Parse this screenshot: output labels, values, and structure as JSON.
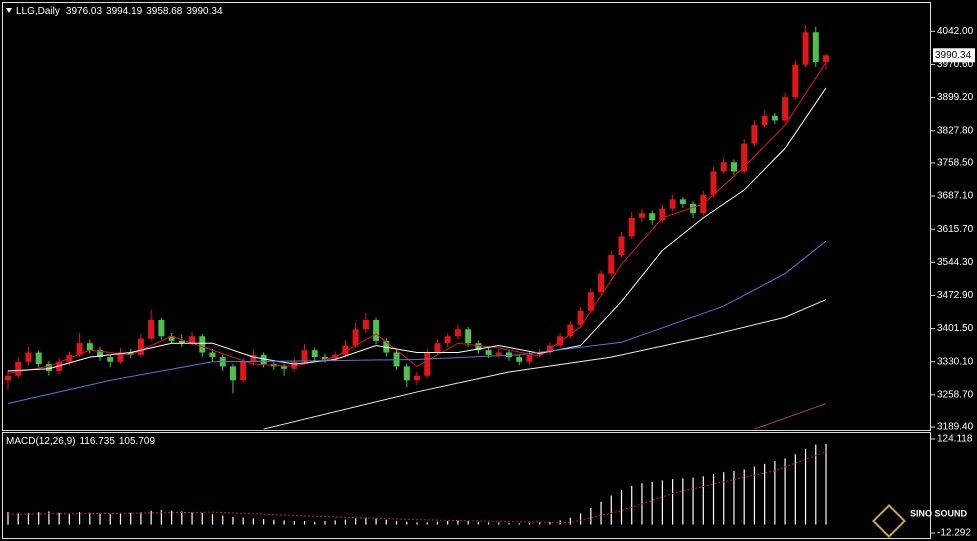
{
  "chart_data": [
    {
      "type": "candlestick",
      "title": "LLG,Daily",
      "up_color": "#e0161b",
      "down_color": "#4ec04b",
      "ylim": [
        3183,
        4103
      ],
      "yticks": [
        {
          "value": 4042,
          "label": "4042.00"
        },
        {
          "value": 3970.6,
          "label": "3970.60"
        },
        {
          "value": 3899.2,
          "label": "3899.20"
        },
        {
          "value": 3827.8,
          "label": "3827.80"
        },
        {
          "value": 3758.5,
          "label": "3758.50"
        },
        {
          "value": 3687.1,
          "label": "3687.10"
        },
        {
          "value": 3615.7,
          "label": "3615.70"
        },
        {
          "value": 3544.3,
          "label": "3544.30"
        },
        {
          "value": 3472.9,
          "label": "3472.90"
        },
        {
          "value": 3401.5,
          "label": "3401.50"
        },
        {
          "value": 3330.1,
          "label": "3330.10"
        },
        {
          "value": 3258.7,
          "label": "3258.70"
        },
        {
          "value": 3189.4,
          "label": "3189.40"
        }
      ],
      "ohlc": [
        [
          3290,
          3312,
          3270,
          3300
        ],
        [
          3300,
          3340,
          3295,
          3330
        ],
        [
          3330,
          3362,
          3322,
          3350
        ],
        [
          3350,
          3355,
          3318,
          3325
        ],
        [
          3325,
          3332,
          3300,
          3310
        ],
        [
          3310,
          3338,
          3304,
          3330
        ],
        [
          3330,
          3352,
          3322,
          3345
        ],
        [
          3345,
          3392,
          3340,
          3370
        ],
        [
          3370,
          3378,
          3348,
          3355
        ],
        [
          3355,
          3362,
          3332,
          3340
        ],
        [
          3340,
          3345,
          3318,
          3330
        ],
        [
          3330,
          3360,
          3325,
          3350
        ],
        [
          3350,
          3358,
          3338,
          3345
        ],
        [
          3345,
          3390,
          3340,
          3380
        ],
        [
          3380,
          3442,
          3375,
          3420
        ],
        [
          3420,
          3425,
          3378,
          3385
        ],
        [
          3385,
          3392,
          3368,
          3375
        ],
        [
          3375,
          3388,
          3362,
          3370
        ],
        [
          3370,
          3395,
          3365,
          3385
        ],
        [
          3385,
          3390,
          3340,
          3350
        ],
        [
          3350,
          3358,
          3330,
          3340
        ],
        [
          3340,
          3346,
          3310,
          3320
        ],
        [
          3320,
          3325,
          3262,
          3290
        ],
        [
          3290,
          3338,
          3285,
          3330
        ],
        [
          3330,
          3355,
          3322,
          3345
        ],
        [
          3345,
          3350,
          3318,
          3325
        ],
        [
          3325,
          3332,
          3312,
          3320
        ],
        [
          3320,
          3326,
          3300,
          3315
        ],
        [
          3315,
          3338,
          3310,
          3330
        ],
        [
          3330,
          3368,
          3325,
          3355
        ],
        [
          3355,
          3360,
          3332,
          3340
        ],
        [
          3340,
          3348,
          3328,
          3335
        ],
        [
          3335,
          3352,
          3330,
          3345
        ],
        [
          3345,
          3378,
          3340,
          3365
        ],
        [
          3365,
          3415,
          3360,
          3400
        ],
        [
          3400,
          3435,
          3392,
          3420
        ],
        [
          3420,
          3425,
          3368,
          3375
        ],
        [
          3375,
          3382,
          3342,
          3350
        ],
        [
          3350,
          3356,
          3312,
          3320
        ],
        [
          3320,
          3326,
          3275,
          3290
        ],
        [
          3290,
          3308,
          3280,
          3300
        ],
        [
          3300,
          3358,
          3295,
          3350
        ],
        [
          3350,
          3378,
          3345,
          3370
        ],
        [
          3370,
          3392,
          3362,
          3385
        ],
        [
          3385,
          3410,
          3378,
          3400
        ],
        [
          3400,
          3405,
          3362,
          3370
        ],
        [
          3370,
          3376,
          3348,
          3355
        ],
        [
          3355,
          3360,
          3338,
          3345
        ],
        [
          3345,
          3358,
          3340,
          3350
        ],
        [
          3350,
          3356,
          3332,
          3340
        ],
        [
          3340,
          3345,
          3322,
          3330
        ],
        [
          3330,
          3352,
          3325,
          3345
        ],
        [
          3345,
          3358,
          3340,
          3350
        ],
        [
          3350,
          3372,
          3345,
          3365
        ],
        [
          3365,
          3392,
          3360,
          3385
        ],
        [
          3385,
          3418,
          3380,
          3410
        ],
        [
          3410,
          3448,
          3405,
          3440
        ],
        [
          3440,
          3488,
          3435,
          3480
        ],
        [
          3480,
          3528,
          3475,
          3520
        ],
        [
          3520,
          3568,
          3515,
          3560
        ],
        [
          3560,
          3610,
          3555,
          3600
        ],
        [
          3600,
          3652,
          3595,
          3640
        ],
        [
          3640,
          3660,
          3630,
          3650
        ],
        [
          3650,
          3656,
          3625,
          3635
        ],
        [
          3635,
          3668,
          3630,
          3660
        ],
        [
          3660,
          3690,
          3655,
          3680
        ],
        [
          3680,
          3685,
          3662,
          3670
        ],
        [
          3670,
          3676,
          3640,
          3650
        ],
        [
          3650,
          3698,
          3645,
          3690
        ],
        [
          3690,
          3750,
          3685,
          3740
        ],
        [
          3740,
          3770,
          3735,
          3760
        ],
        [
          3760,
          3766,
          3732,
          3740
        ],
        [
          3740,
          3810,
          3735,
          3800
        ],
        [
          3800,
          3850,
          3795,
          3840
        ],
        [
          3840,
          3872,
          3835,
          3860
        ],
        [
          3860,
          3866,
          3842,
          3850
        ],
        [
          3850,
          3910,
          3845,
          3900
        ],
        [
          3900,
          3980,
          3895,
          3970
        ],
        [
          3970,
          4055,
          3965,
          4040
        ],
        [
          4040,
          4052,
          3965,
          3976
        ],
        [
          3976.03,
          3994.19,
          3958.68,
          3990.34
        ]
      ],
      "series": [
        {
          "color": "#e0161b",
          "x": [
            0,
            4,
            8,
            12,
            16,
            20,
            24,
            28,
            32,
            36,
            40,
            44,
            48,
            52,
            56,
            60,
            64,
            68,
            72,
            76,
            80
          ],
          "values": [
            3305,
            3320,
            3355,
            3345,
            3385,
            3355,
            3325,
            3320,
            3340,
            3390,
            3320,
            3370,
            3360,
            3342,
            3405,
            3540,
            3640,
            3670,
            3750,
            3840,
            3975
          ]
        },
        {
          "color": "#ffffff",
          "x": [
            0,
            4,
            8,
            12,
            16,
            20,
            24,
            28,
            32,
            36,
            40,
            44,
            48,
            52,
            56,
            60,
            64,
            68,
            72,
            76,
            80
          ],
          "values": [
            3310,
            3315,
            3340,
            3350,
            3370,
            3370,
            3340,
            3325,
            3335,
            3365,
            3350,
            3350,
            3365,
            3348,
            3365,
            3460,
            3570,
            3640,
            3700,
            3790,
            3920
          ]
        },
        {
          "color": "#4a7fd6",
          "x": [
            0,
            10,
            20,
            30,
            40,
            50,
            60,
            70,
            76,
            80
          ],
          "values": [
            3240,
            3290,
            3330,
            3332,
            3335,
            3345,
            3372,
            3450,
            3520,
            3590
          ]
        },
        {
          "color": "#f2f0d8",
          "x": [
            25,
            40,
            49,
            59,
            68,
            76,
            80
          ],
          "values": [
            3185,
            3265,
            3308,
            3340,
            3383,
            3426,
            3464
          ]
        },
        {
          "color": "#b5472f",
          "x": [
            73,
            80
          ],
          "values": [
            3185,
            3240
          ]
        }
      ]
    },
    {
      "type": "macd",
      "title": "MACD(12,26,9)",
      "color": "#ffffff",
      "ylim": [
        -12.292,
        124.118
      ],
      "yticks": [
        124.118,
        -12.292
      ],
      "values": [
        18,
        16,
        17,
        18,
        19,
        17,
        16,
        18,
        17,
        16,
        15,
        16,
        17,
        18,
        20,
        21,
        20,
        19,
        18,
        17,
        15,
        13,
        11,
        10,
        9,
        8,
        7,
        6,
        5,
        5,
        4,
        5,
        6,
        7,
        9,
        10,
        9,
        7,
        5,
        4,
        3,
        3,
        4,
        5,
        6,
        5,
        4,
        3,
        3,
        2,
        2,
        2,
        3,
        4,
        6,
        10,
        16,
        24,
        33,
        42,
        50,
        56,
        60,
        62,
        64,
        66,
        67,
        68,
        70,
        73,
        76,
        78,
        80,
        84,
        88,
        92,
        96,
        102,
        110,
        116,
        116.735
      ],
      "signal": {
        "color": "#d02020",
        "x": [
          0,
          10,
          20,
          30,
          40,
          50,
          55,
          60,
          65,
          70,
          75,
          80
        ],
        "values": [
          15,
          16,
          18,
          12,
          7,
          4,
          3,
          20,
          45,
          62,
          78,
          105.709
        ]
      }
    }
  ],
  "watermark": "SINO SOUND"
}
